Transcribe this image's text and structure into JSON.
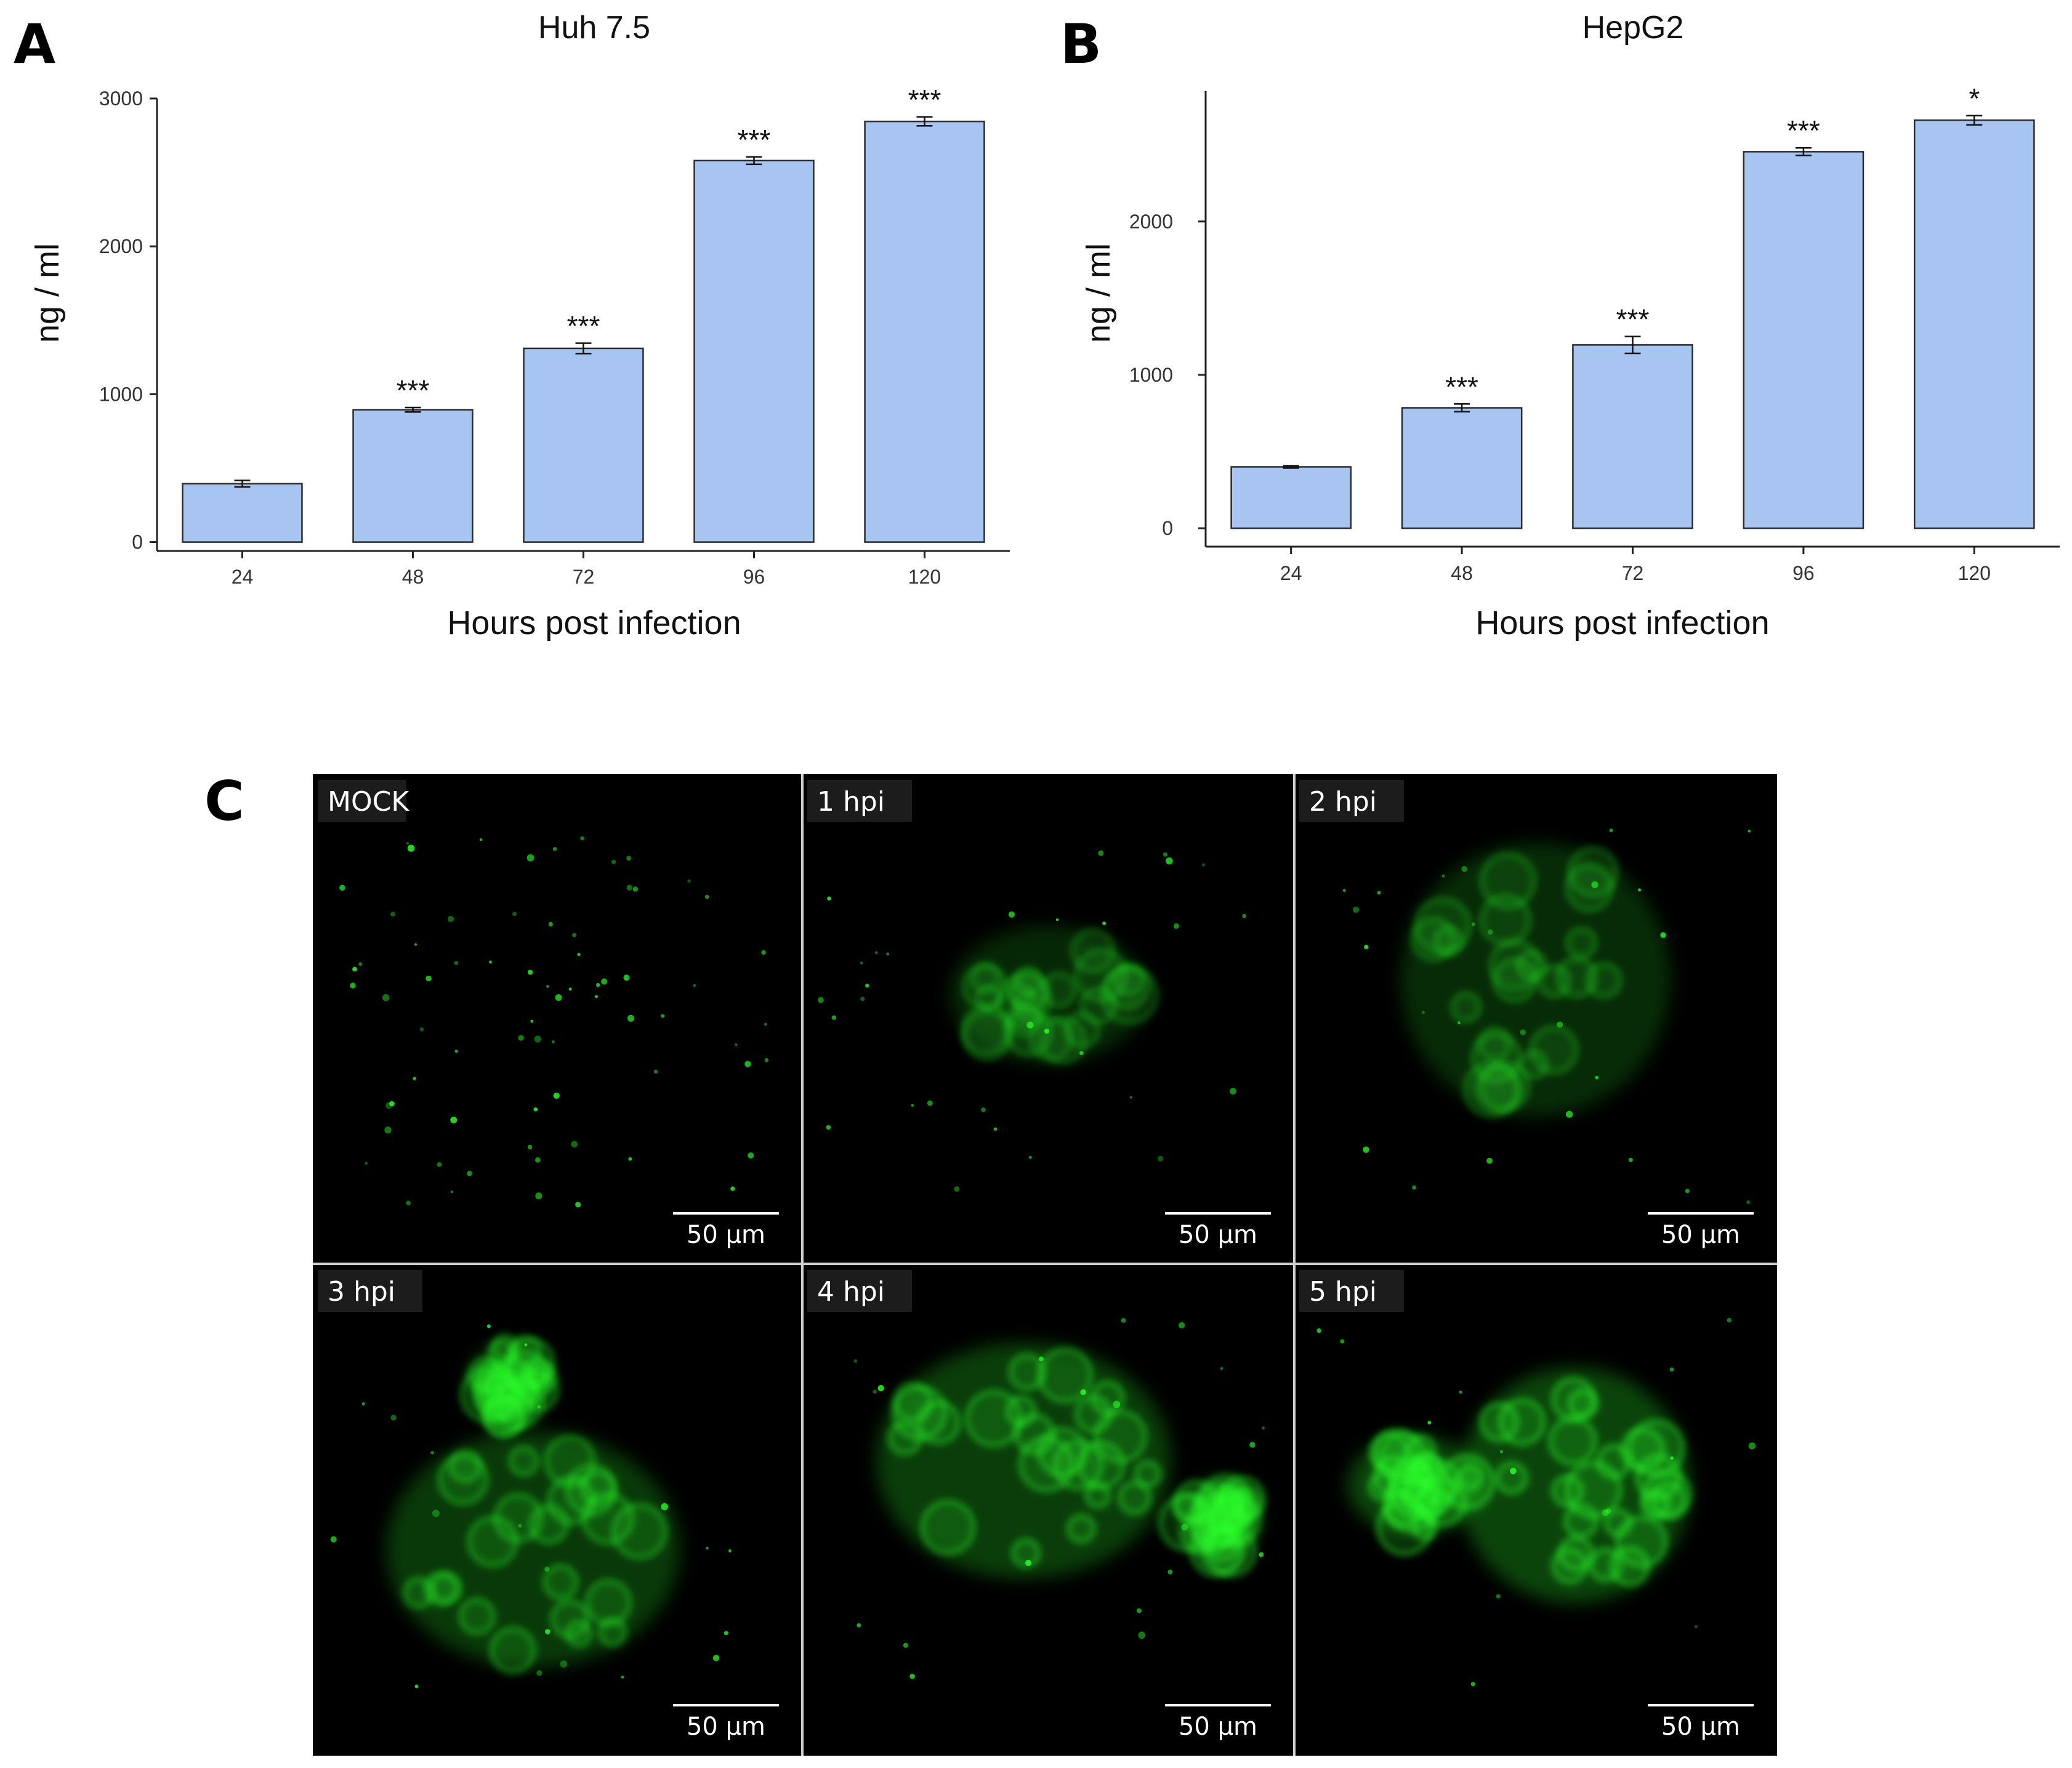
{
  "panels": {
    "a": "A",
    "b": "B",
    "c": "C"
  },
  "chart_data": [
    {
      "type": "bar",
      "title": "Huh 7.5",
      "xlabel": "Hours post infection",
      "ylabel": "ng / ml",
      "categories": [
        "24",
        "48",
        "72",
        "96",
        "120"
      ],
      "values": [
        395,
        895,
        1310,
        2580,
        2845
      ],
      "errors": [
        22,
        15,
        35,
        25,
        30
      ],
      "significance": [
        "",
        "***",
        "***",
        "***",
        "***"
      ],
      "ylim": [
        -60,
        3000
      ],
      "yticks": [
        0,
        1000,
        2000,
        3000
      ],
      "grid": false,
      "bar_color": "#a8c4f0",
      "bar_edge": "#2b2b2b"
    },
    {
      "type": "bar",
      "title": "HepG2",
      "xlabel": "Hours post infection",
      "ylabel": "ng / ml",
      "categories": [
        "24",
        "48",
        "72",
        "96",
        "120"
      ],
      "values": [
        400,
        785,
        1195,
        2455,
        2660
      ],
      "errors": [
        8,
        25,
        55,
        25,
        30
      ],
      "significance": [
        "",
        "***",
        "***",
        "***",
        "*"
      ],
      "ylim": [
        -120,
        2850
      ],
      "yticks": [
        0,
        1000,
        2000
      ],
      "grid": false,
      "bar_color": "#a8c4f0",
      "bar_edge": "#2b2b2b"
    }
  ],
  "micrographs": [
    {
      "label": "MOCK",
      "scale": "50 μm"
    },
    {
      "label": "1 hpi",
      "scale": "50 μm"
    },
    {
      "label": "2 hpi",
      "scale": "50 μm"
    },
    {
      "label": "3 hpi",
      "scale": "50 μm"
    },
    {
      "label": "4 hpi",
      "scale": "50 μm"
    },
    {
      "label": "5 hpi",
      "scale": "50 μm"
    }
  ],
  "colors": {
    "fluorescence": "#2aff2a",
    "background": "#000000"
  }
}
